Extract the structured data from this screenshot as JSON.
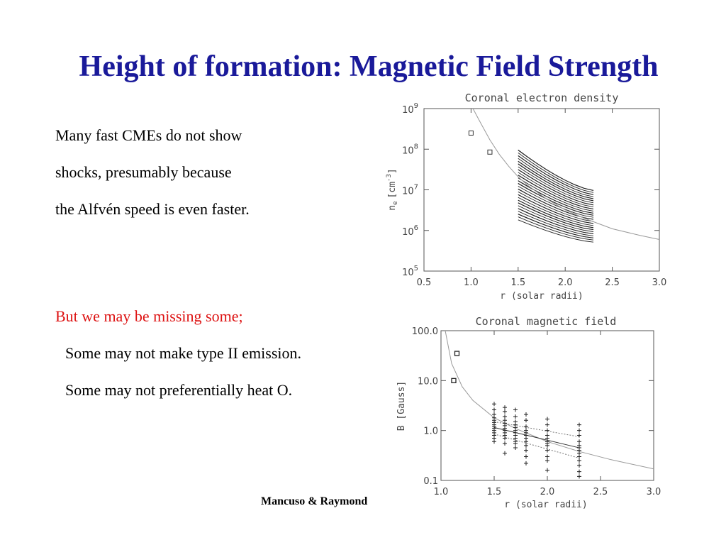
{
  "slide": {
    "title": "Height of formation:  Magnetic Field Strength",
    "text_lines": [
      "Many fast CMEs do not show",
      "shocks, presumably because",
      "the Alfvén speed is even faster."
    ],
    "red_line": "But we may be missing some;",
    "indented_lines": [
      "Some may not make type II emission.",
      "Some may not preferentially heat O."
    ],
    "credit": "Mancuso & Raymond",
    "colors": {
      "title": "#1a1a9a",
      "red_text": "#dd1111"
    }
  },
  "chart_data": [
    {
      "type": "line",
      "title": "Coronal electron density",
      "xlabel": "r (solar radii)",
      "ylabel": "n_e [cm^-3]",
      "ylabel_parts": {
        "symbol": "n",
        "sub": "e",
        "unit_open": "[cm",
        "exp": "-3",
        "unit_close": "]"
      },
      "xlim": [
        0.5,
        3.0
      ],
      "ylim": [
        100000,
        1000000000
      ],
      "yscale": "log",
      "x_ticks": [
        "0.5",
        "1.0",
        "1.5",
        "2.0",
        "2.5",
        "3.0"
      ],
      "y_ticks": [
        {
          "base": "10",
          "exp": "5"
        },
        {
          "base": "10",
          "exp": "6"
        },
        {
          "base": "10",
          "exp": "7"
        },
        {
          "base": "10",
          "exp": "8"
        },
        {
          "base": "10",
          "exp": "9"
        }
      ],
      "model_curve": {
        "x": [
          1.02,
          1.1,
          1.2,
          1.3,
          1.4,
          1.5,
          1.6,
          1.8,
          2.0,
          2.2,
          2.5,
          2.8,
          3.0
        ],
        "y": [
          1000000000,
          450000000,
          170000000,
          75000000,
          38000000,
          21000000,
          13000000,
          6000000,
          3200000,
          2000000,
          1100000,
          750000,
          600000
        ]
      },
      "square_points": {
        "x": [
          1.0,
          1.2
        ],
        "y": [
          250000000,
          85000000
        ]
      },
      "cme_bundle": {
        "x_range": [
          1.5,
          2.3
        ],
        "start_y_range": [
          2000000,
          100000000
        ],
        "end_y_range": [
          550000,
          10000000
        ],
        "count": 40
      }
    },
    {
      "type": "scatter",
      "title": "Coronal magnetic field",
      "xlabel": "r (solar radii)",
      "ylabel": "B [Gauss]",
      "xlim": [
        1.0,
        3.0
      ],
      "ylim": [
        0.1,
        100.0
      ],
      "yscale": "log",
      "x_ticks": [
        "1.0",
        "1.5",
        "2.0",
        "2.5",
        "3.0"
      ],
      "y_ticks": [
        "0.1",
        "1.0",
        "10.0",
        "100.0"
      ],
      "model_curve": {
        "x": [
          1.04,
          1.1,
          1.2,
          1.3,
          1.5,
          1.7,
          2.0,
          2.3,
          2.6,
          3.0
        ],
        "y": [
          100,
          22,
          7.5,
          4.0,
          1.8,
          1.1,
          0.6,
          0.38,
          0.26,
          0.17
        ]
      },
      "square_points": {
        "x": [
          1.15,
          1.12
        ],
        "y": [
          35,
          10
        ]
      },
      "plus_points": [
        {
          "x": 1.5,
          "y": [
            3.4,
            2.6,
            2.1,
            1.8,
            1.6,
            1.45,
            1.3,
            1.2,
            1.1,
            1.0,
            0.9,
            0.8,
            0.7,
            0.6
          ]
        },
        {
          "x": 1.6,
          "y": [
            2.9,
            2.4,
            1.9,
            1.6,
            1.4,
            1.25,
            1.1,
            1.0,
            0.9,
            0.8,
            0.7,
            0.55,
            0.35
          ]
        },
        {
          "x": 1.7,
          "y": [
            2.6,
            1.9,
            1.5,
            1.3,
            1.15,
            1.0,
            0.9,
            0.8,
            0.7,
            0.6,
            0.55,
            0.45
          ]
        },
        {
          "x": 1.8,
          "y": [
            2.1,
            1.6,
            1.2,
            1.0,
            0.9,
            0.8,
            0.7,
            0.6,
            0.5,
            0.4,
            0.3,
            0.22
          ]
        },
        {
          "x": 2.0,
          "y": [
            1.7,
            1.3,
            1.0,
            0.8,
            0.7,
            0.6,
            0.55,
            0.5,
            0.4,
            0.3,
            0.25,
            0.16
          ]
        },
        {
          "x": 2.3,
          "y": [
            1.3,
            1.0,
            0.8,
            0.6,
            0.5,
            0.45,
            0.4,
            0.35,
            0.3,
            0.25,
            0.2,
            0.15,
            0.12
          ]
        }
      ],
      "trend_lines": [
        {
          "x": [
            1.5,
            2.3
          ],
          "y": [
            1.5,
            0.75
          ]
        },
        {
          "x": [
            1.5,
            2.3
          ],
          "y": [
            1.15,
            0.45
          ]
        },
        {
          "x": [
            1.5,
            2.3
          ],
          "y": [
            0.85,
            0.28
          ]
        }
      ]
    }
  ]
}
